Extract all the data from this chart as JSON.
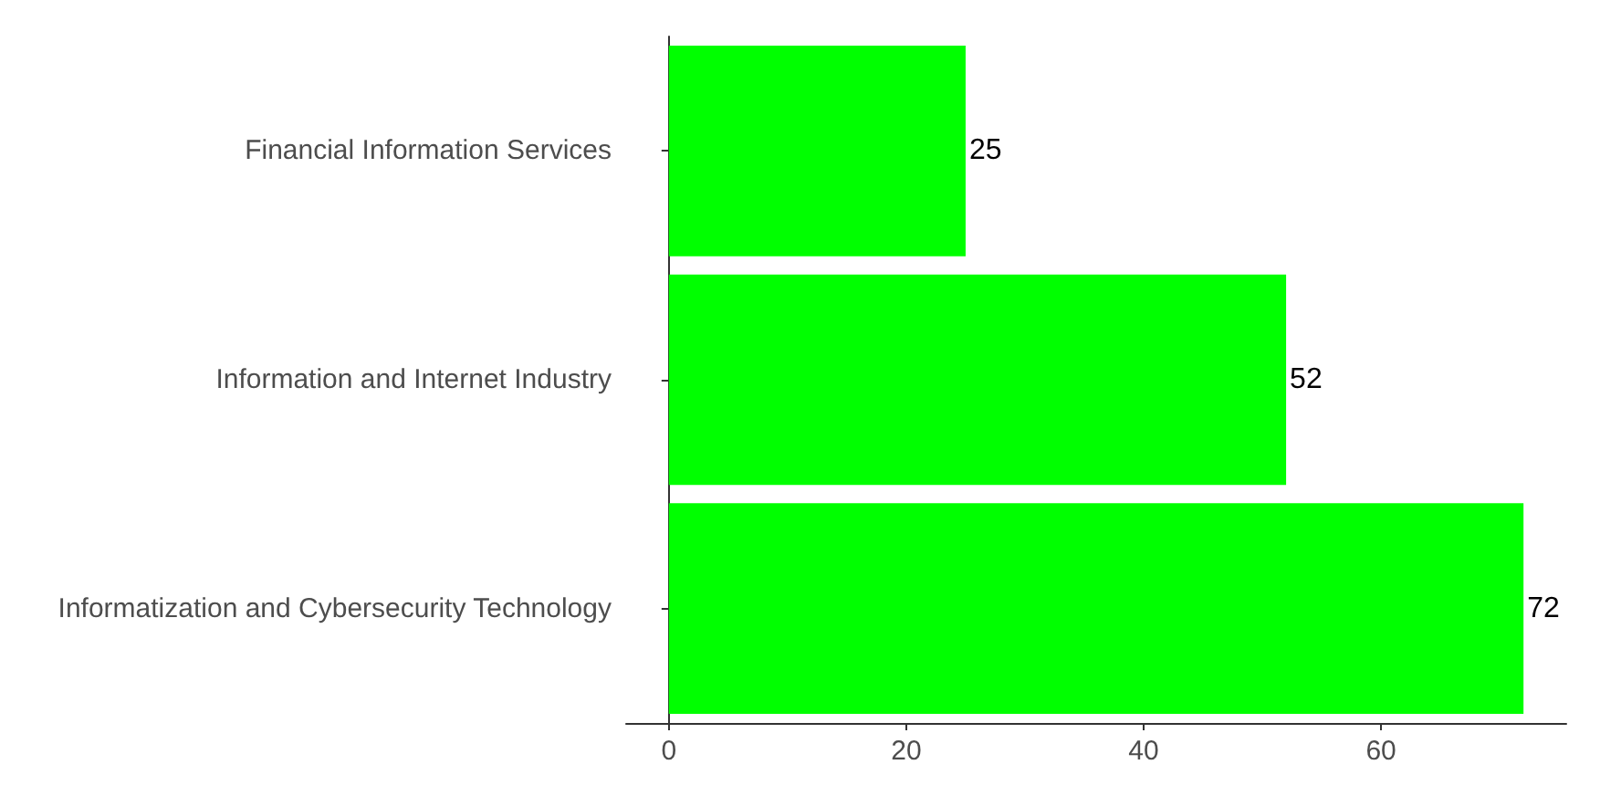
{
  "chart_data": {
    "type": "bar",
    "orientation": "horizontal",
    "categories": [
      "Financial Information Services",
      "Information and Internet Industry",
      "Informatization and Cybersecurity Technology"
    ],
    "values": [
      25,
      52,
      72
    ],
    "color": "#00ff00",
    "data_labels": true,
    "xlim": [
      -3.6,
      75.6
    ],
    "xticks": [
      0,
      20,
      40,
      60
    ],
    "grid": false
  }
}
